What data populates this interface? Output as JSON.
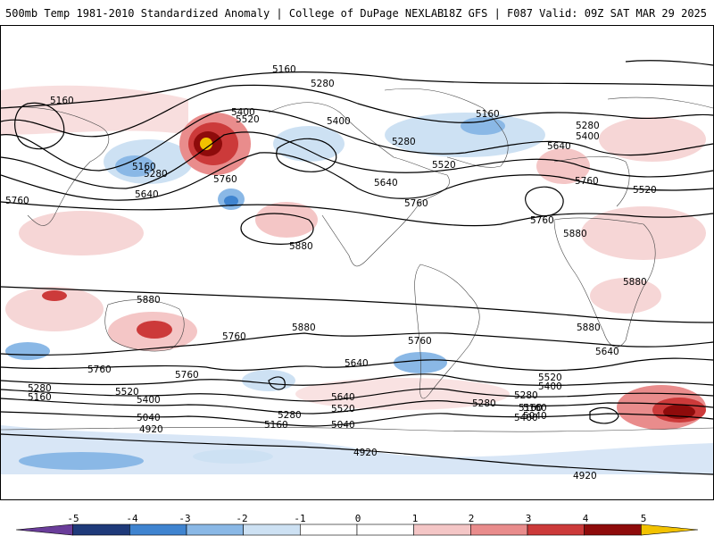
{
  "header": {
    "title_left": "500mb Temp 1981-2010 Standardized Anomaly | College of DuPage NEXLAB",
    "title_right": "18Z GFS | F087 Valid: 09Z SAT MAR 29 2025"
  },
  "map": {
    "contour_labels": [
      {
        "id": "c5160-a",
        "text": "5160"
      },
      {
        "id": "c5280-a",
        "text": "5280"
      },
      {
        "id": "c5160-b",
        "text": "5160"
      },
      {
        "id": "c5400-a",
        "text": "5400"
      },
      {
        "id": "c5520-a",
        "text": "5520"
      },
      {
        "id": "c5160-c",
        "text": "5160"
      },
      {
        "id": "c5280-b",
        "text": "5280"
      },
      {
        "id": "c5640-a",
        "text": "5640"
      },
      {
        "id": "c5760-a",
        "text": "5760"
      },
      {
        "id": "c5760-b",
        "text": "5760"
      },
      {
        "id": "c5880-a",
        "text": "5880"
      },
      {
        "id": "c5400-b",
        "text": "5400"
      },
      {
        "id": "c5280-c",
        "text": "5280"
      },
      {
        "id": "c5520-b",
        "text": "5520"
      },
      {
        "id": "c5640-b",
        "text": "5640"
      },
      {
        "id": "c5760-c",
        "text": "5760"
      },
      {
        "id": "c5160-d",
        "text": "5160"
      },
      {
        "id": "c5280-d",
        "text": "5280"
      },
      {
        "id": "c5400-c",
        "text": "5400"
      },
      {
        "id": "c5640-c",
        "text": "5640"
      },
      {
        "id": "c5760-d",
        "text": "5760"
      },
      {
        "id": "c5520-c",
        "text": "5520"
      },
      {
        "id": "c5760-e",
        "text": "5760"
      },
      {
        "id": "c5880-b",
        "text": "5880"
      },
      {
        "id": "c5880-c",
        "text": "5880"
      },
      {
        "id": "c5880-d",
        "text": "5880"
      },
      {
        "id": "c5880-e",
        "text": "5880"
      },
      {
        "id": "c5880-f",
        "text": "5880"
      },
      {
        "id": "c5760-f",
        "text": "5760"
      },
      {
        "id": "c5760-g",
        "text": "5760"
      },
      {
        "id": "c5640-d",
        "text": "5640"
      },
      {
        "id": "c5760-h",
        "text": "5760"
      },
      {
        "id": "c5760-i",
        "text": "5760"
      },
      {
        "id": "c5640-e",
        "text": "5640"
      },
      {
        "id": "c5520-d",
        "text": "5520"
      },
      {
        "id": "c5400-d",
        "text": "5400"
      },
      {
        "id": "c5280-e",
        "text": "5280"
      },
      {
        "id": "c5160-e",
        "text": "5160"
      },
      {
        "id": "c5280-f",
        "text": "5280"
      },
      {
        "id": "c5160-f",
        "text": "5160"
      },
      {
        "id": "c5040-a",
        "text": "5040"
      },
      {
        "id": "c4920-a",
        "text": "4920"
      },
      {
        "id": "c5520-e",
        "text": "5520"
      },
      {
        "id": "c5400-e",
        "text": "5400"
      },
      {
        "id": "c5280-g",
        "text": "5280"
      },
      {
        "id": "c5160-g",
        "text": "5160"
      },
      {
        "id": "c5040-b",
        "text": "5040"
      },
      {
        "id": "c5640-f",
        "text": "5640"
      },
      {
        "id": "c5520-f",
        "text": "5520"
      },
      {
        "id": "c5400-f",
        "text": "5400"
      },
      {
        "id": "c5280-h",
        "text": "5280"
      },
      {
        "id": "c5160-h",
        "text": "5160"
      },
      {
        "id": "c5040-c",
        "text": "5040"
      },
      {
        "id": "c4920-b",
        "text": "4920"
      },
      {
        "id": "c4920-c",
        "text": "4920"
      }
    ]
  },
  "colorbar": {
    "ticks": [
      "-5",
      "-4",
      "-3",
      "-2",
      "-1",
      "0",
      "1",
      "2",
      "3",
      "4",
      "5"
    ],
    "colors": [
      "#6a3d9a",
      "#1f3a7a",
      "#3f84d0",
      "#8ab8e6",
      "#cde1f3",
      "#ffffff",
      "#ffffff",
      "#f4c6c6",
      "#e98c8c",
      "#cc3a3a",
      "#8e0b0b",
      "#f2c200"
    ]
  }
}
